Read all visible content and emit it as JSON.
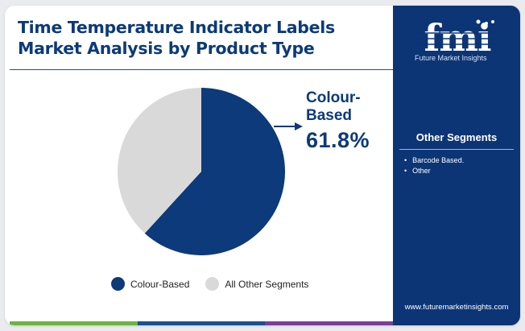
{
  "title_lines": [
    "Time Temperature Indicator Labels",
    "Market Analysis by Product Type"
  ],
  "chart_data": {
    "type": "pie",
    "slices": [
      {
        "label": "Colour-Based",
        "value": 61.8,
        "color": "#0c3a7a"
      },
      {
        "label": "All Other Segments",
        "value": 38.2,
        "color": "#d9d9d9"
      }
    ],
    "callout": {
      "label_lines": [
        "Colour-",
        "Based"
      ],
      "value_text": "61.8%"
    },
    "legend": [
      "Colour-Based",
      "All Other Segments"
    ],
    "legend_position": "bottom"
  },
  "sidebar": {
    "brand": "Future Market Insights",
    "segments_title": "Other Segments",
    "segments": [
      "Barcode Based.",
      "Other"
    ],
    "website": "www.futuremarketinsights.com"
  },
  "colors": {
    "primary": "#0c3a7a",
    "secondary": "#d9d9d9",
    "sidebar": "#0c3575",
    "bar_green": "#6db33f",
    "bar_blue": "#1d4f91",
    "bar_purple": "#7b3f98"
  }
}
